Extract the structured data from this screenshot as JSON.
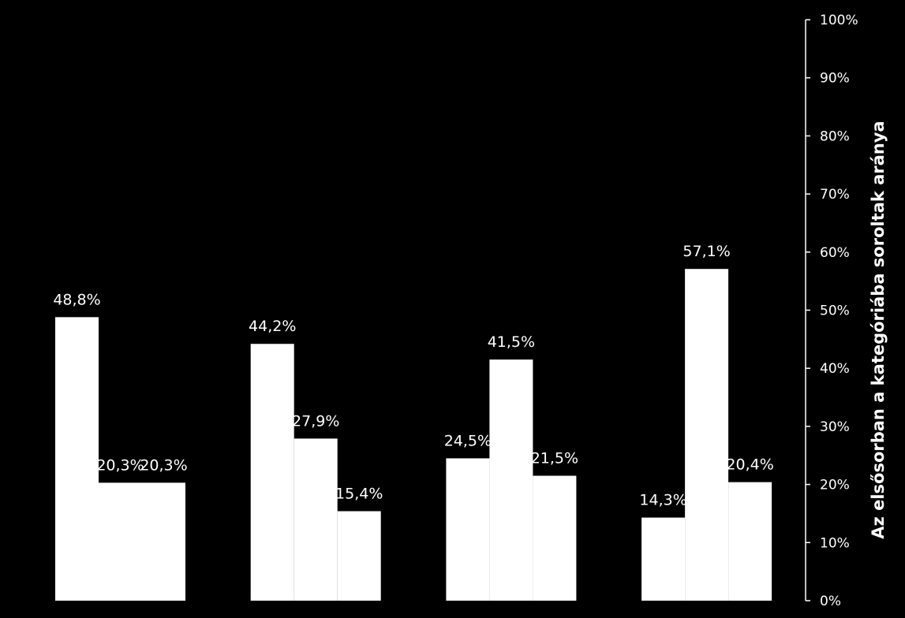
{
  "chart_data": {
    "type": "bar",
    "title": "",
    "xlabel": "",
    "ylabel": "Az elsősorban a kategóriába soroltak aránya",
    "ylim": [
      0,
      100
    ],
    "y_axis_side": "right",
    "y_ticks": [
      "0%",
      "10%",
      "20%",
      "30%",
      "40%",
      "50%",
      "60%",
      "70%",
      "80%",
      "90%",
      "100%"
    ],
    "categories": [
      "",
      "",
      "",
      ""
    ],
    "series": [
      {
        "values": [
          48.8,
          44.2,
          24.5,
          14.3
        ],
        "labels": [
          "48,8%",
          "44,2%",
          "24,5%",
          "14,3%"
        ]
      },
      {
        "values": [
          20.3,
          27.9,
          41.5,
          57.1
        ],
        "labels": [
          "20,3%",
          "27,9%",
          "41,5%",
          "57,1%"
        ]
      },
      {
        "values": [
          20.3,
          15.4,
          21.5,
          20.4
        ],
        "labels": [
          "20,3%",
          "15,4%",
          "21,5%",
          "20,4%"
        ]
      }
    ],
    "colors": {
      "background": "#000000",
      "bar": "#ffffff",
      "text": "#ffffff",
      "axis": "#ffffff"
    },
    "grid": false,
    "legend": "none"
  }
}
